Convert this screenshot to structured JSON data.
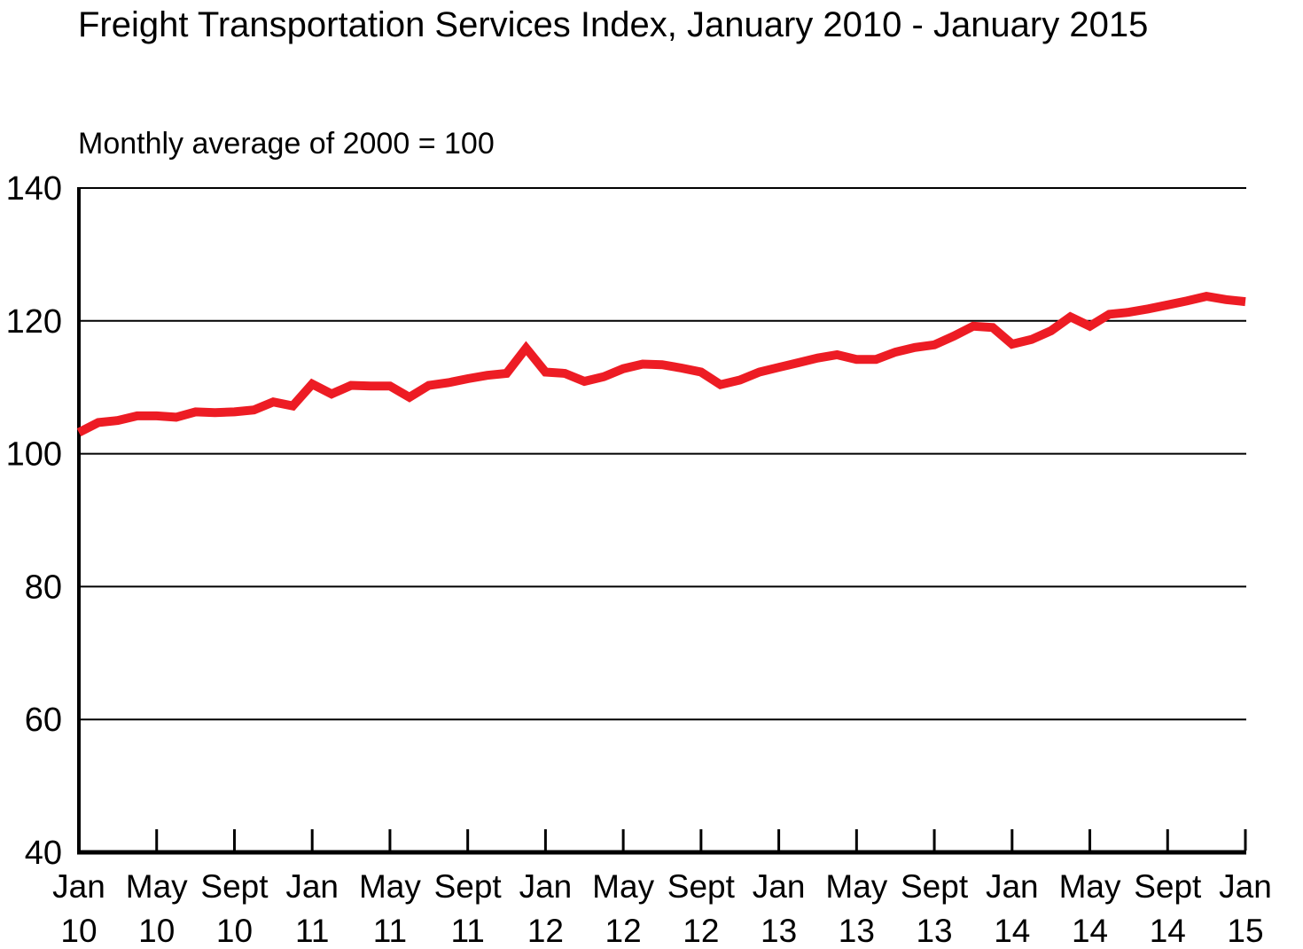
{
  "page": {
    "background_color": "#ffffff",
    "text_color": "#000000"
  },
  "chart_data": {
    "type": "line",
    "title": "Freight Transportation Services Index, January 2010 - January 2015",
    "subtitle": "Monthly average of 2000 = 100",
    "xlabel": "",
    "ylabel": "",
    "ylim": [
      40,
      140
    ],
    "y_ticks": [
      40,
      60,
      80,
      100,
      120,
      140
    ],
    "grid": "horizontal",
    "legend_position": "none",
    "line_color": "#ED1C24",
    "axis_color": "#000000",
    "x_tick_interval_months": 4,
    "x_tick_labels": [
      {
        "month": "Jan",
        "year": "10"
      },
      {
        "month": "May",
        "year": "10"
      },
      {
        "month": "Sept",
        "year": "10"
      },
      {
        "month": "Jan",
        "year": "11"
      },
      {
        "month": "May",
        "year": "11"
      },
      {
        "month": "Sept",
        "year": "11"
      },
      {
        "month": "Jan",
        "year": "12"
      },
      {
        "month": "May",
        "year": "12"
      },
      {
        "month": "Sept",
        "year": "12"
      },
      {
        "month": "Jan",
        "year": "13"
      },
      {
        "month": "May",
        "year": "13"
      },
      {
        "month": "Sept",
        "year": "13"
      },
      {
        "month": "Jan",
        "year": "14"
      },
      {
        "month": "May",
        "year": "14"
      },
      {
        "month": "Sept",
        "year": "14"
      },
      {
        "month": "Jan",
        "year": "15"
      }
    ],
    "x": [
      "2010-01",
      "2010-02",
      "2010-03",
      "2010-04",
      "2010-05",
      "2010-06",
      "2010-07",
      "2010-08",
      "2010-09",
      "2010-10",
      "2010-11",
      "2010-12",
      "2011-01",
      "2011-02",
      "2011-03",
      "2011-04",
      "2011-05",
      "2011-06",
      "2011-07",
      "2011-08",
      "2011-09",
      "2011-10",
      "2011-11",
      "2011-12",
      "2012-01",
      "2012-02",
      "2012-03",
      "2012-04",
      "2012-05",
      "2012-06",
      "2012-07",
      "2012-08",
      "2012-09",
      "2012-10",
      "2012-11",
      "2012-12",
      "2013-01",
      "2013-02",
      "2013-03",
      "2013-04",
      "2013-05",
      "2013-06",
      "2013-07",
      "2013-08",
      "2013-09",
      "2013-10",
      "2013-11",
      "2013-12",
      "2014-01",
      "2014-02",
      "2014-03",
      "2014-04",
      "2014-05",
      "2014-06",
      "2014-07",
      "2014-08",
      "2014-09",
      "2014-10",
      "2014-11",
      "2014-12",
      "2015-01"
    ],
    "series": [
      {
        "name": "Freight Transportation Services Index",
        "values": [
          103.2,
          104.7,
          105.0,
          105.7,
          105.7,
          105.5,
          106.3,
          106.2,
          106.3,
          106.6,
          107.8,
          107.2,
          110.5,
          109.0,
          110.3,
          110.2,
          110.2,
          108.5,
          110.3,
          110.7,
          111.3,
          111.8,
          112.1,
          115.9,
          112.3,
          112.1,
          110.9,
          111.6,
          112.8,
          113.5,
          113.4,
          112.9,
          112.3,
          110.4,
          111.1,
          112.3,
          113.0,
          113.7,
          114.4,
          114.9,
          114.2,
          114.2,
          115.3,
          116.0,
          116.4,
          117.7,
          119.2,
          119.0,
          116.5,
          117.2,
          118.5,
          120.6,
          119.2,
          121.0,
          121.3,
          121.8,
          122.4,
          123.0,
          123.7,
          123.2,
          122.9
        ]
      }
    ]
  }
}
